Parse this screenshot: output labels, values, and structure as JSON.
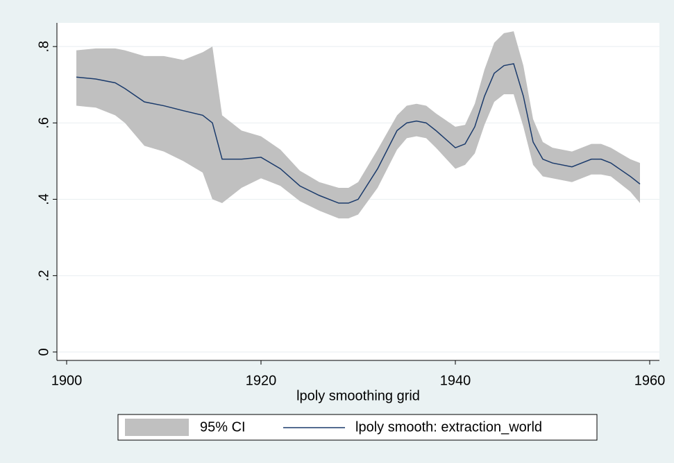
{
  "chart_data": {
    "type": "line",
    "x_label": "lpoly smoothing grid",
    "x": [
      1901,
      1903,
      1905,
      1906,
      1908,
      1910,
      1912,
      1914,
      1915,
      1916,
      1918,
      1920,
      1922,
      1924,
      1926,
      1928,
      1929,
      1930,
      1932,
      1934,
      1935,
      1936,
      1937,
      1938,
      1940,
      1941,
      1942,
      1943,
      1944,
      1945,
      1946,
      1947,
      1948,
      1949,
      1950,
      1952,
      1954,
      1955,
      1956,
      1958,
      1959
    ],
    "series": [
      {
        "name": "95% CI",
        "color": "#c0c0c0",
        "upper": [
          0.79,
          0.795,
          0.795,
          0.79,
          0.775,
          0.775,
          0.765,
          0.785,
          0.8,
          0.62,
          0.58,
          0.565,
          0.53,
          0.475,
          0.445,
          0.43,
          0.43,
          0.445,
          0.53,
          0.62,
          0.645,
          0.65,
          0.645,
          0.625,
          0.59,
          0.595,
          0.65,
          0.74,
          0.81,
          0.835,
          0.84,
          0.75,
          0.61,
          0.55,
          0.535,
          0.525,
          0.545,
          0.545,
          0.535,
          0.505,
          0.495
        ],
        "lower": [
          0.645,
          0.64,
          0.62,
          0.6,
          0.54,
          0.525,
          0.5,
          0.47,
          0.4,
          0.39,
          0.43,
          0.455,
          0.435,
          0.395,
          0.37,
          0.35,
          0.35,
          0.36,
          0.43,
          0.53,
          0.56,
          0.565,
          0.56,
          0.535,
          0.48,
          0.49,
          0.52,
          0.595,
          0.655,
          0.675,
          0.675,
          0.59,
          0.49,
          0.46,
          0.455,
          0.445,
          0.465,
          0.465,
          0.46,
          0.42,
          0.39
        ]
      },
      {
        "name": "lpoly smooth: extraction_world",
        "color": "#1a3a6b",
        "values": [
          0.72,
          0.715,
          0.705,
          0.69,
          0.655,
          0.645,
          0.632,
          0.62,
          0.6,
          0.505,
          0.505,
          0.51,
          0.48,
          0.435,
          0.41,
          0.39,
          0.39,
          0.4,
          0.48,
          0.58,
          0.6,
          0.605,
          0.6,
          0.58,
          0.535,
          0.545,
          0.59,
          0.67,
          0.73,
          0.75,
          0.755,
          0.67,
          0.55,
          0.505,
          0.495,
          0.485,
          0.505,
          0.505,
          0.495,
          0.46,
          0.44
        ]
      }
    ],
    "xlim": [
      1899,
      1961
    ],
    "xticks": [
      1900,
      1920,
      1940,
      1960
    ],
    "ylim": [
      -0.022,
      0.862
    ],
    "yticks": [
      0,
      {
        "value": 0.2,
        "label": ".2"
      },
      {
        "value": 0.4,
        "label": ".4"
      },
      {
        "value": 0.6,
        "label": ".6"
      },
      {
        "value": 0.8,
        "label": ".8"
      }
    ],
    "grid": true
  }
}
